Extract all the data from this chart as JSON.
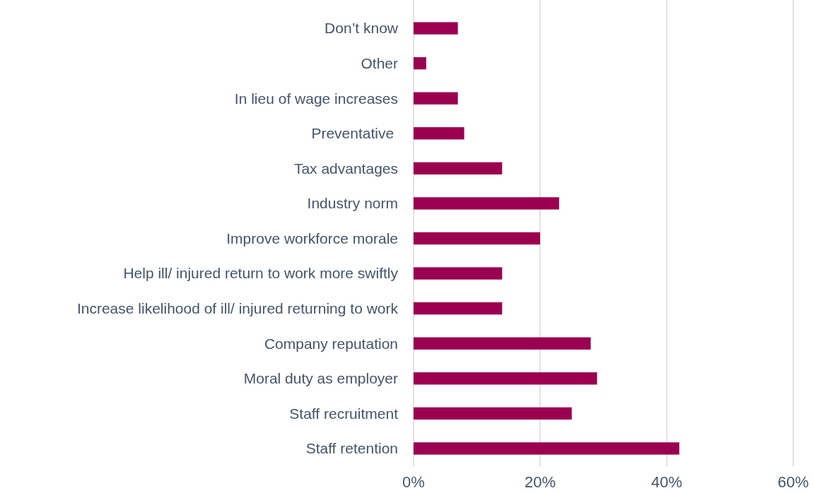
{
  "chart_data": {
    "type": "bar",
    "orientation": "horizontal",
    "categories": [
      "Don’t know",
      "Other",
      "In lieu of wage increases",
      "Preventative ",
      "Tax advantages",
      "Industry norm",
      "Improve workforce morale",
      "Help ill/ injured return to work more swiftly",
      "Increase likelihood of ill/ injured returning to work",
      "Company reputation",
      "Moral duty as employer",
      "Staff recruitment",
      "Staff retention"
    ],
    "values": [
      7,
      2,
      7,
      8,
      14,
      23,
      20,
      14,
      14,
      28,
      29,
      25,
      42
    ],
    "color": "#9b0050",
    "xlim": [
      0,
      60
    ],
    "xticks": [
      {
        "value": 0,
        "label": "0%"
      },
      {
        "value": 20,
        "label": "20%"
      },
      {
        "value": 40,
        "label": "40%"
      },
      {
        "value": 60,
        "label": "60%"
      }
    ],
    "grid": "x"
  }
}
